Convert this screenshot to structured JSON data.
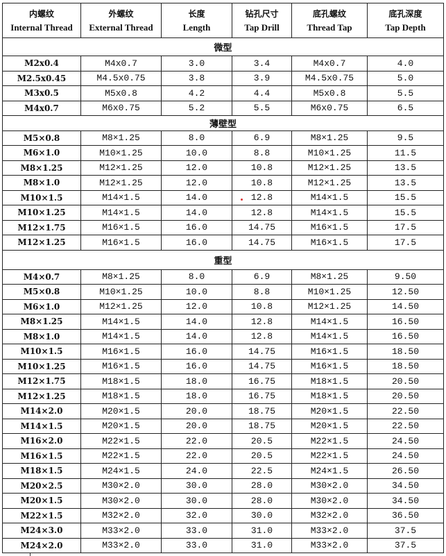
{
  "headers": [
    {
      "zh": "内螺纹",
      "en": "Internal Thread"
    },
    {
      "zh": "外螺纹",
      "en": "External Thread"
    },
    {
      "zh": "长度",
      "en": "Length"
    },
    {
      "zh": "钻孔尺寸",
      "en": "Tap Drill"
    },
    {
      "zh": "底孔螺纹",
      "en": "Thread Tap"
    },
    {
      "zh": "底孔深度",
      "en": "Tap Depth"
    }
  ],
  "sections": [
    {
      "title": "微型",
      "rows": [
        [
          "M2x0.4",
          "M4x0.7",
          "3.0",
          "3.4",
          "M4x0.7",
          "4.0"
        ],
        [
          "M2.5x0.45",
          "M4.5x0.75",
          "3.8",
          "3.9",
          "M4.5x0.75",
          "5.0"
        ],
        [
          "M3x0.5",
          "M5x0.8",
          "4.2",
          "4.4",
          "M5x0.8",
          "5.5"
        ],
        [
          "M4x0.7",
          "M6x0.75",
          "5.2",
          "5.5",
          "M6x0.75",
          "6.5"
        ]
      ]
    },
    {
      "title": "薄壁型",
      "rows": [
        [
          "M5×0.8",
          "M8×1.25",
          "8.0",
          "6.9",
          "M8×1.25",
          "9.5"
        ],
        [
          "M6×1.0",
          "M10×1.25",
          "10.0",
          "8.8",
          "M10×1.25",
          "11.5"
        ],
        [
          "M8×1.25",
          "M12×1.25",
          "12.0",
          "10.8",
          "M12×1.25",
          "13.5"
        ],
        [
          "M8×1.0",
          "M12×1.25",
          "12.0",
          "10.8",
          "M12×1.25",
          "13.5"
        ],
        [
          "M10×1.5",
          "M14×1.5",
          "14.0",
          "12.8",
          "M14×1.5",
          "15.5"
        ],
        [
          "M10×1.25",
          "M14×1.5",
          "14.0",
          "12.8",
          "M14×1.5",
          "15.5"
        ],
        [
          "M12×1.75",
          "M16×1.5",
          "16.0",
          "14.75",
          "M16×1.5",
          "17.5"
        ],
        [
          "M12×1.25",
          "M16×1.5",
          "16.0",
          "14.75",
          "M16×1.5",
          "17.5"
        ]
      ]
    },
    {
      "title": "重型",
      "rows": [
        [
          "M4×0.7",
          "M8×1.25",
          "8.0",
          "6.9",
          "M8×1.25",
          "9.50"
        ],
        [
          "M5×0.8",
          "M10×1.25",
          "10.0",
          "8.8",
          "M10×1.25",
          "12.50"
        ],
        [
          "M6×1.0",
          "M12×1.25",
          "12.0",
          "10.8",
          "M12×1.25",
          "14.50"
        ],
        [
          "M8×1.25",
          "M14×1.5",
          "14.0",
          "12.8",
          "M14×1.5",
          "16.50"
        ],
        [
          "M8×1.0",
          "M14×1.5",
          "14.0",
          "12.8",
          "M14×1.5",
          "16.50"
        ],
        [
          "M10×1.5",
          "M16×1.5",
          "16.0",
          "14.75",
          "M16×1.5",
          "18.50"
        ],
        [
          "M10×1.25",
          "M16×1.5",
          "16.0",
          "14.75",
          "M16×1.5",
          "18.50"
        ],
        [
          "M12×1.75",
          "M18×1.5",
          "18.0",
          "16.75",
          "M18×1.5",
          "20.50"
        ],
        [
          "M12×1.25",
          "M18×1.5",
          "18.0",
          "16.75",
          "M18×1.5",
          "20.50"
        ],
        [
          "M14×2.0",
          "M20×1.5",
          "20.0",
          "18.75",
          "M20×1.5",
          "22.50"
        ],
        [
          "M14×1.5",
          "M20×1.5",
          "20.0",
          "18.75",
          "M20×1.5",
          "22.50"
        ],
        [
          "M16×2.0",
          "M22×1.5",
          "22.0",
          "20.5",
          "M22×1.5",
          "24.50"
        ],
        [
          "M16×1.5",
          "M22×1.5",
          "22.0",
          "20.5",
          "M22×1.5",
          "24.50"
        ],
        [
          "M18×1.5",
          "M24×1.5",
          "24.0",
          "22.5",
          "M24×1.5",
          "26.50"
        ],
        [
          "M20×2.5",
          "M30×2.0",
          "30.0",
          "28.0",
          "M30×2.0",
          "34.50"
        ],
        [
          "M20×1.5",
          "M30×2.0",
          "30.0",
          "28.0",
          "M30×2.0",
          "34.50"
        ],
        [
          "M22×1.5",
          "M32×2.0",
          "32.0",
          "30.0",
          "M32×2.0",
          "36.50"
        ],
        [
          "M24×3.0",
          "M33×2.0",
          "33.0",
          "31.0",
          "M33×2.0",
          "37.5"
        ],
        [
          "M24×2.0",
          "M33×2.0",
          "33.0",
          "31.0",
          "M33×2.0",
          "37.5"
        ]
      ]
    }
  ]
}
